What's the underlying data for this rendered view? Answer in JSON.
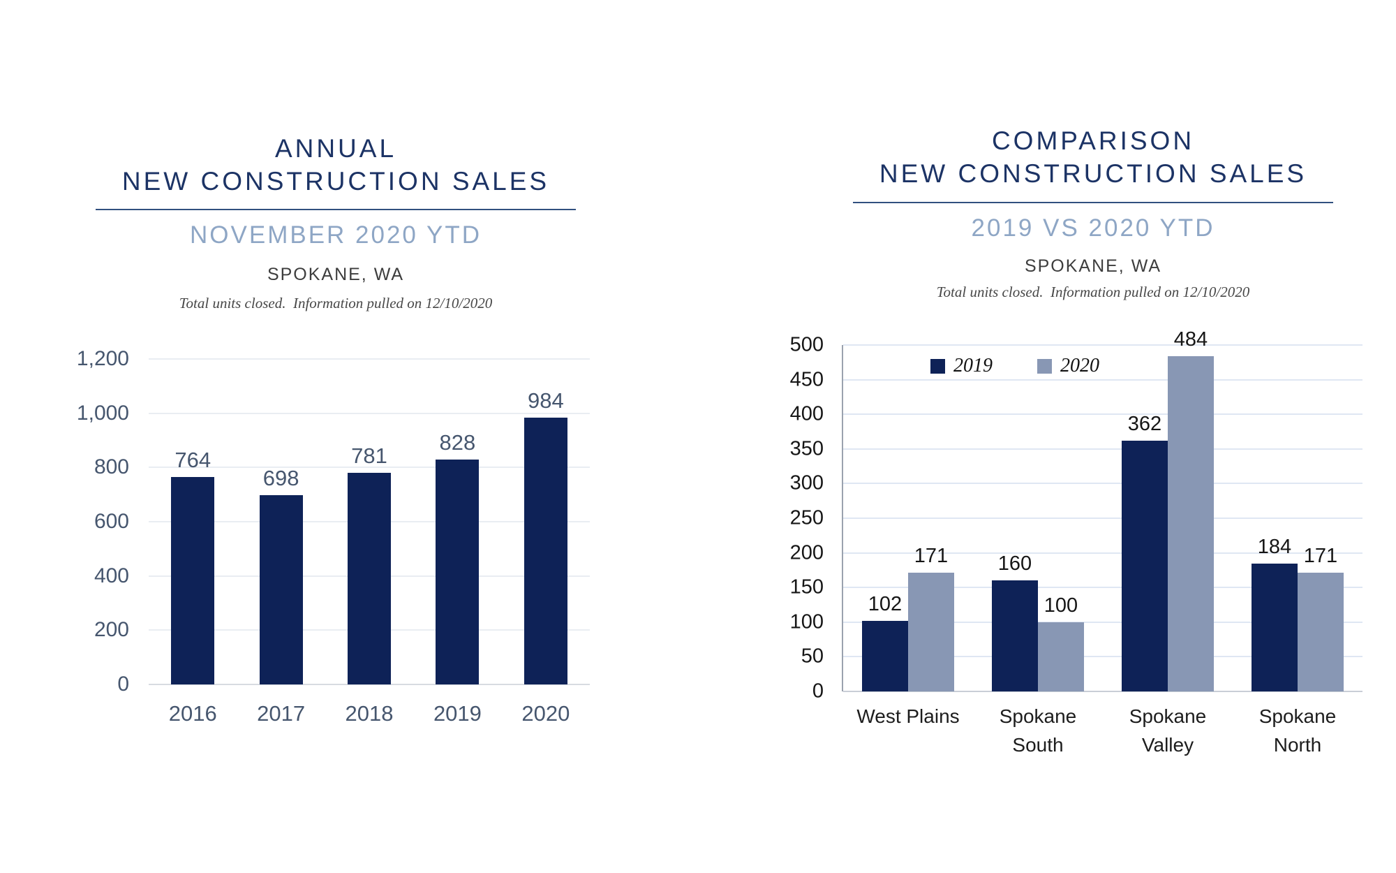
{
  "style": {
    "background": "#ffffff",
    "title_navy": "#1c3365",
    "divider_navy": "#31507f",
    "subtitle_blue": "#8ea6c5",
    "bar_navy": "#0e2257",
    "bar_gray_blue": "#8897b4",
    "axis_slate": "#46566e",
    "axis_black": "#161616"
  },
  "charts": [
    {
      "title": "ANNUAL\nNEW CONSTRUCTION SALES",
      "subtitle": "NOVEMBER 2020 YTD",
      "location": "SPOKANE, WA",
      "note": "Total units closed.  Information pulled on 12/10/2020"
    },
    {
      "title": "COMPARISON\nNEW CONSTRUCTION SALES",
      "subtitle": "2019 VS 2020 YTD",
      "location": "SPOKANE, WA",
      "note": "Total units closed.  Information pulled on 12/10/2020"
    }
  ],
  "chart_data": [
    {
      "type": "bar",
      "title": "ANNUAL NEW CONSTRUCTION SALES",
      "subtitle": "NOVEMBER 2020 YTD — SPOKANE, WA",
      "categories": [
        "2016",
        "2017",
        "2018",
        "2019",
        "2020"
      ],
      "values": [
        764,
        698,
        781,
        828,
        984
      ],
      "bar_color": "#0e2257",
      "ylim": [
        0,
        1200
      ],
      "ytick_step": 200,
      "ytick_labels": [
        "0",
        "200",
        "400",
        "600",
        "800",
        "1,000",
        "1,200"
      ],
      "grid": true,
      "legend": "none",
      "data_labels": true
    },
    {
      "type": "bar",
      "title": "COMPARISON NEW CONSTRUCTION SALES",
      "subtitle": "2019 VS 2020 YTD — SPOKANE, WA",
      "categories": [
        "West Plains",
        "Spokane South",
        "Spokane Valley",
        "Spokane North"
      ],
      "xtick_labels": [
        "West Plains",
        "Spokane\nSouth",
        "Spokane\nValley",
        "Spokane\nNorth"
      ],
      "series": [
        {
          "name": "2019",
          "values": [
            102,
            160,
            362,
            184
          ],
          "color": "#0e2257"
        },
        {
          "name": "2020",
          "values": [
            171,
            100,
            484,
            171
          ],
          "color": "#8897b4"
        }
      ],
      "ylim": [
        0,
        500
      ],
      "ytick_step": 50,
      "ytick_labels": [
        "0",
        "50",
        "100",
        "150",
        "200",
        "250",
        "300",
        "350",
        "400",
        "450",
        "500"
      ],
      "grid": true,
      "legend": "top-inside",
      "data_labels": true
    }
  ]
}
